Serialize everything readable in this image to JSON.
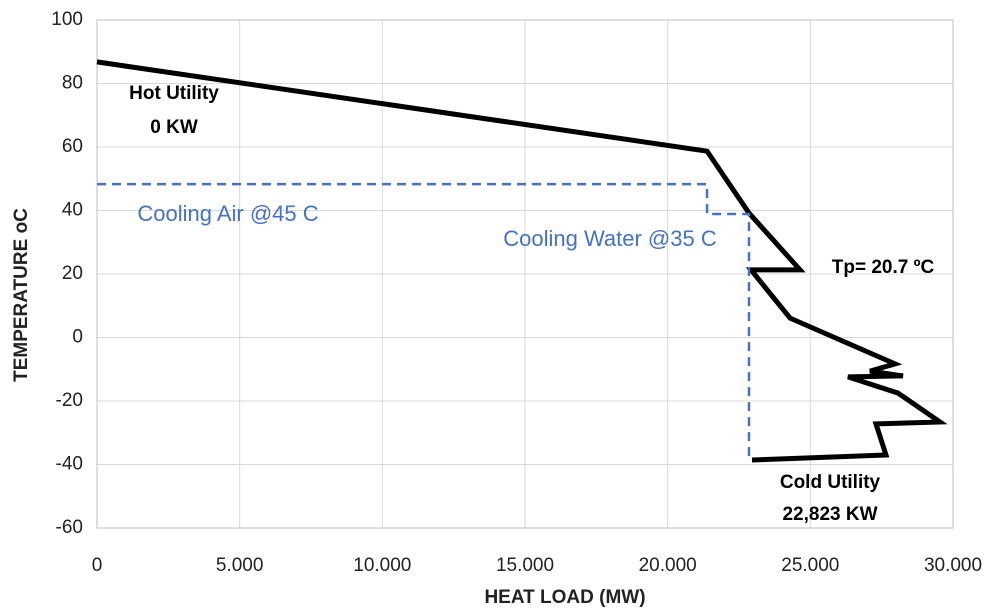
{
  "chart_data": {
    "type": "line",
    "xlabel": "HEAT LOAD (MW)",
    "ylabel": "TEMPERATURE oC",
    "xlim": [
      0,
      30000
    ],
    "ylim": [
      -60,
      100
    ],
    "xticks": [
      0,
      {
        "value": 5000,
        "label": "5.000"
      },
      {
        "value": 10000,
        "label": "10.000"
      },
      {
        "value": 15000,
        "label": "15.000"
      },
      {
        "value": 20000,
        "label": "20.000"
      },
      {
        "value": 25000,
        "label": "25.000"
      },
      {
        "value": 30000,
        "label": "30.000"
      }
    ],
    "yticks": [
      -60,
      -40,
      -20,
      0,
      20,
      40,
      60,
      80,
      100
    ],
    "grid": true,
    "series": [
      {
        "color": "#000000",
        "style": "solid",
        "x": [
          0,
          21380,
          22850,
          24640,
          22920,
          24290,
          27968,
          27091,
          28248,
          26320,
          28072,
          29544,
          27301,
          27652,
          22956
        ],
        "values": [
          86.8,
          58.7,
          39.2,
          21.3,
          21.3,
          6.1,
          -8.3,
          -10.6,
          -12.1,
          -12.4,
          -17.5,
          -26.6,
          -27.2,
          -37.0,
          -38.6
        ]
      },
      {
        "color": "#4472c4",
        "style": "dashed",
        "x": [
          0,
          21380,
          21380,
          22850,
          22850
        ],
        "values": [
          48.3,
          48.3,
          38.9,
          38.9,
          -38.6
        ]
      }
    ],
    "annotations": [
      {
        "text": "Hot Utility",
        "color": "#000000"
      },
      {
        "text": "0 KW",
        "color": "#000000"
      },
      {
        "text": "Cooling Air @45 C",
        "color": "#4472c4"
      },
      {
        "text": "Cooling Water @35 C",
        "color": "#4472c4"
      },
      {
        "text": "Tp= 20.7 ºC",
        "color": "#000000"
      },
      {
        "text": "Cold Utility",
        "color": "#000000"
      },
      {
        "text": "22,823 KW",
        "color": "#000000"
      }
    ]
  }
}
